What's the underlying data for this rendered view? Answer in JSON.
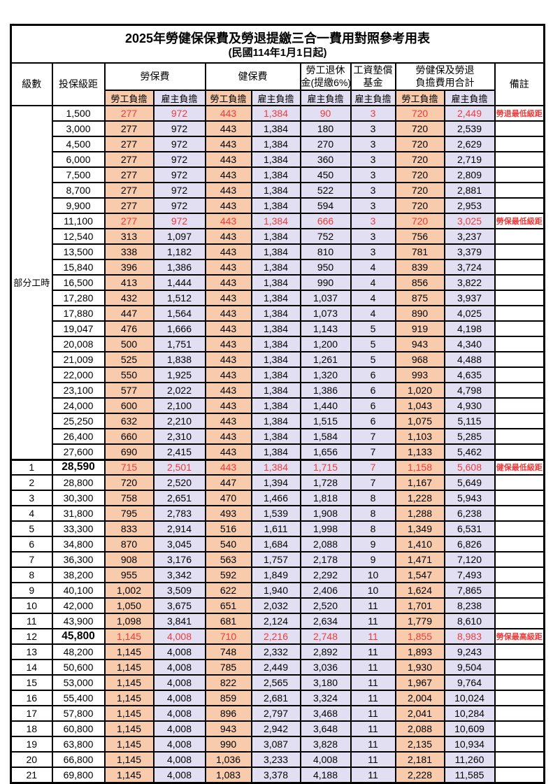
{
  "page": {
    "title": "2025年勞健保保費及勞退提繳三合一費用對照參考用表",
    "subtitle": "(民國114年1月1日起)"
  },
  "header": {
    "level": "級數",
    "bracket": "投保級距",
    "labor_ins": "勞保費",
    "health_ins": "健保費",
    "pension_line1": "勞工退休",
    "pension_line2": "金(提繳6%)",
    "wage_fund_line1": "工資墊償",
    "wage_fund_line2": "基金",
    "total_line1": "勞健保及勞退",
    "total_line2": "負擔費用合計",
    "remark": "備註",
    "employee": "勞工負擔",
    "employer": "雇主負擔"
  },
  "part_time_label": "部分工時",
  "colors": {
    "employee_bg": "#F8CBAD",
    "employer_bg": "#E2DFF3",
    "highlight_text": "#EF3B3B",
    "border": "#000000"
  },
  "row_fields": [
    "level",
    "bracket",
    "labor_employee",
    "labor_employer",
    "health_employee",
    "health_employer",
    "pension_employer",
    "wage_fund_employer",
    "total_employee",
    "total_employer",
    "remark",
    "red",
    "bold_bracket",
    "section_start"
  ],
  "rows": [
    [
      "",
      "1,500",
      "277",
      "972",
      "443",
      "1,384",
      "90",
      "3",
      "720",
      "2,449",
      "勞退最低級距",
      true,
      false,
      false
    ],
    [
      "",
      "3,000",
      "277",
      "972",
      "443",
      "1,384",
      "180",
      "3",
      "720",
      "2,539",
      "",
      false,
      false,
      false
    ],
    [
      "",
      "4,500",
      "277",
      "972",
      "443",
      "1,384",
      "270",
      "3",
      "720",
      "2,629",
      "",
      false,
      false,
      false
    ],
    [
      "",
      "6,000",
      "277",
      "972",
      "443",
      "1,384",
      "360",
      "3",
      "720",
      "2,719",
      "",
      false,
      false,
      false
    ],
    [
      "",
      "7,500",
      "277",
      "972",
      "443",
      "1,384",
      "450",
      "3",
      "720",
      "2,809",
      "",
      false,
      false,
      false
    ],
    [
      "",
      "8,700",
      "277",
      "972",
      "443",
      "1,384",
      "522",
      "3",
      "720",
      "2,881",
      "",
      false,
      false,
      false
    ],
    [
      "",
      "9,900",
      "277",
      "972",
      "443",
      "1,384",
      "594",
      "3",
      "720",
      "2,953",
      "",
      false,
      false,
      false
    ],
    [
      "",
      "11,100",
      "277",
      "972",
      "443",
      "1,384",
      "666",
      "3",
      "720",
      "3,025",
      "勞保最低級距",
      true,
      false,
      false
    ],
    [
      "",
      "12,540",
      "313",
      "1,097",
      "443",
      "1,384",
      "752",
      "3",
      "756",
      "3,237",
      "",
      false,
      false,
      false
    ],
    [
      "",
      "13,500",
      "338",
      "1,182",
      "443",
      "1,384",
      "810",
      "3",
      "781",
      "3,379",
      "",
      false,
      false,
      false
    ],
    [
      "",
      "15,840",
      "396",
      "1,386",
      "443",
      "1,384",
      "950",
      "4",
      "839",
      "3,724",
      "",
      false,
      false,
      false
    ],
    [
      "",
      "16,500",
      "413",
      "1,444",
      "443",
      "1,384",
      "990",
      "4",
      "856",
      "3,822",
      "",
      false,
      false,
      false
    ],
    [
      "",
      "17,280",
      "432",
      "1,512",
      "443",
      "1,384",
      "1,037",
      "4",
      "875",
      "3,937",
      "",
      false,
      false,
      false
    ],
    [
      "",
      "17,880",
      "447",
      "1,564",
      "443",
      "1,384",
      "1,073",
      "4",
      "890",
      "4,025",
      "",
      false,
      false,
      false
    ],
    [
      "",
      "19,047",
      "476",
      "1,666",
      "443",
      "1,384",
      "1,143",
      "5",
      "919",
      "4,198",
      "",
      false,
      false,
      false
    ],
    [
      "",
      "20,008",
      "500",
      "1,751",
      "443",
      "1,384",
      "1,200",
      "5",
      "943",
      "4,340",
      "",
      false,
      false,
      false
    ],
    [
      "",
      "21,009",
      "525",
      "1,838",
      "443",
      "1,384",
      "1,261",
      "5",
      "968",
      "4,488",
      "",
      false,
      false,
      false
    ],
    [
      "",
      "22,000",
      "550",
      "1,925",
      "443",
      "1,384",
      "1,320",
      "6",
      "993",
      "4,635",
      "",
      false,
      false,
      false
    ],
    [
      "",
      "23,100",
      "577",
      "2,022",
      "443",
      "1,384",
      "1,386",
      "6",
      "1,020",
      "4,798",
      "",
      false,
      false,
      false
    ],
    [
      "",
      "24,000",
      "600",
      "2,100",
      "443",
      "1,384",
      "1,440",
      "6",
      "1,043",
      "4,930",
      "",
      false,
      false,
      false
    ],
    [
      "",
      "25,250",
      "632",
      "2,210",
      "443",
      "1,384",
      "1,515",
      "6",
      "1,075",
      "5,115",
      "",
      false,
      false,
      false
    ],
    [
      "",
      "26,400",
      "660",
      "2,310",
      "443",
      "1,384",
      "1,584",
      "7",
      "1,103",
      "5,285",
      "",
      false,
      false,
      false
    ],
    [
      "",
      "27,600",
      "690",
      "2,415",
      "443",
      "1,384",
      "1,656",
      "7",
      "1,133",
      "5,462",
      "",
      false,
      false,
      false
    ],
    [
      "1",
      "28,590",
      "715",
      "2,501",
      "443",
      "1,384",
      "1,715",
      "7",
      "1,158",
      "5,608",
      "健保最低級距",
      true,
      true,
      true
    ],
    [
      "2",
      "28,800",
      "720",
      "2,520",
      "447",
      "1,394",
      "1,728",
      "7",
      "1,167",
      "5,649",
      "",
      false,
      false,
      false
    ],
    [
      "3",
      "30,300",
      "758",
      "2,651",
      "470",
      "1,466",
      "1,818",
      "8",
      "1,228",
      "5,943",
      "",
      false,
      false,
      false
    ],
    [
      "4",
      "31,800",
      "795",
      "2,783",
      "493",
      "1,539",
      "1,908",
      "8",
      "1,288",
      "6,238",
      "",
      false,
      false,
      false
    ],
    [
      "5",
      "33,300",
      "833",
      "2,914",
      "516",
      "1,611",
      "1,998",
      "8",
      "1,349",
      "6,531",
      "",
      false,
      false,
      false
    ],
    [
      "6",
      "34,800",
      "870",
      "3,045",
      "540",
      "1,684",
      "2,088",
      "9",
      "1,410",
      "6,826",
      "",
      false,
      false,
      false
    ],
    [
      "7",
      "36,300",
      "908",
      "3,176",
      "563",
      "1,757",
      "2,178",
      "9",
      "1,471",
      "7,120",
      "",
      false,
      false,
      false
    ],
    [
      "8",
      "38,200",
      "955",
      "3,342",
      "592",
      "1,849",
      "2,292",
      "10",
      "1,547",
      "7,493",
      "",
      false,
      false,
      false
    ],
    [
      "9",
      "40,100",
      "1,002",
      "3,509",
      "622",
      "1,940",
      "2,406",
      "10",
      "1,624",
      "7,865",
      "",
      false,
      false,
      false
    ],
    [
      "10",
      "42,000",
      "1,050",
      "3,675",
      "651",
      "2,032",
      "2,520",
      "11",
      "1,701",
      "8,238",
      "",
      false,
      false,
      false
    ],
    [
      "11",
      "43,900",
      "1,098",
      "3,841",
      "681",
      "2,124",
      "2,634",
      "11",
      "1,779",
      "8,610",
      "",
      false,
      false,
      false
    ],
    [
      "12",
      "45,800",
      "1,145",
      "4,008",
      "710",
      "2,216",
      "2,748",
      "11",
      "1,855",
      "8,983",
      "勞保最高級距",
      true,
      true,
      false
    ],
    [
      "13",
      "48,200",
      "1,145",
      "4,008",
      "748",
      "2,332",
      "2,892",
      "11",
      "1,893",
      "9,243",
      "",
      false,
      false,
      false
    ],
    [
      "14",
      "50,600",
      "1,145",
      "4,008",
      "785",
      "2,449",
      "3,036",
      "11",
      "1,930",
      "9,504",
      "",
      false,
      false,
      false
    ],
    [
      "15",
      "53,000",
      "1,145",
      "4,008",
      "822",
      "2,565",
      "3,180",
      "11",
      "1,967",
      "9,764",
      "",
      false,
      false,
      false
    ],
    [
      "16",
      "55,400",
      "1,145",
      "4,008",
      "859",
      "2,681",
      "3,324",
      "11",
      "2,004",
      "10,024",
      "",
      false,
      false,
      false
    ],
    [
      "17",
      "57,800",
      "1,145",
      "4,008",
      "896",
      "2,797",
      "3,468",
      "11",
      "2,041",
      "10,284",
      "",
      false,
      false,
      false
    ],
    [
      "18",
      "60,800",
      "1,145",
      "4,008",
      "943",
      "2,942",
      "3,648",
      "11",
      "2,088",
      "10,609",
      "",
      false,
      false,
      false
    ],
    [
      "19",
      "63,800",
      "1,145",
      "4,008",
      "990",
      "3,087",
      "3,828",
      "11",
      "2,135",
      "10,934",
      "",
      false,
      false,
      false
    ],
    [
      "20",
      "66,800",
      "1,145",
      "4,008",
      "1,036",
      "3,233",
      "4,008",
      "11",
      "2,181",
      "11,260",
      "",
      false,
      false,
      false
    ],
    [
      "21",
      "69,800",
      "1,145",
      "4,008",
      "1,083",
      "3,378",
      "4,188",
      "11",
      "2,228",
      "11,585",
      "",
      false,
      false,
      false
    ]
  ],
  "part_time_row_count": 23
}
